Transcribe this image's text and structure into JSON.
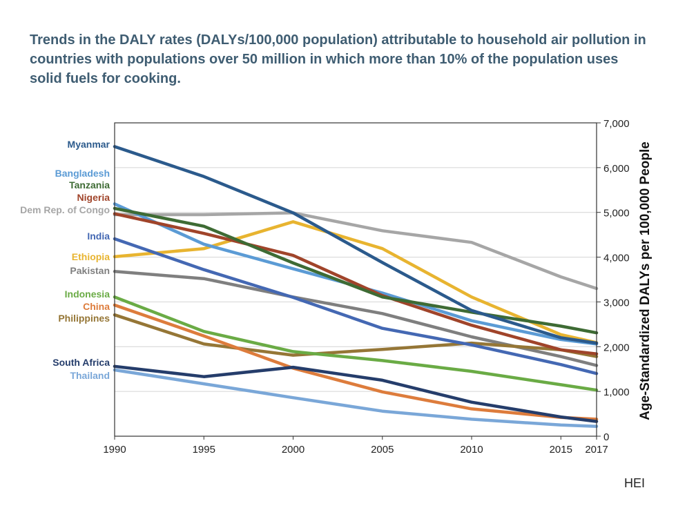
{
  "title": "Trends in the DALY rates (DALYs/100,000 population) attributable to household air pollution in countries with populations over 50 million in which more than 10% of the population uses solid fuels for cooking.",
  "credit": "HEI",
  "chart_data": {
    "type": "line",
    "title": "Trends in the DALY rates (DALYs/100,000 population) attributable to household air pollution in countries with populations over 50 million in which more than 10% of the population uses solid fuels for cooking.",
    "xlabel": "",
    "ylabel": "Age-Standardized DALYs per 100,000 People",
    "x": [
      1990,
      1995,
      2000,
      2005,
      2010,
      2015,
      2017
    ],
    "x_ticks": [
      "1990",
      "1995",
      "2000",
      "2005",
      "2010",
      "2015",
      "2017"
    ],
    "ylim": [
      0,
      7000
    ],
    "y_ticks": [
      "0",
      "1,000",
      "2,000",
      "3,000",
      "4,000",
      "5,000",
      "6,000",
      "7,000"
    ],
    "y_axis_side": "right",
    "grid": true,
    "legend": "series labels at left of plot",
    "series": [
      {
        "name": "Dem Rep. of Congo",
        "color": "#a6a6a6",
        "values": [
          4950,
          4950,
          4990,
          4590,
          4330,
          3560,
          3300
        ]
      },
      {
        "name": "Ethiopia",
        "color": "#e8b430",
        "values": [
          4010,
          4190,
          4790,
          4190,
          3110,
          2270,
          2090
        ]
      },
      {
        "name": "Pakistan",
        "color": "#7f7f7f",
        "values": [
          3680,
          3520,
          3110,
          2740,
          2220,
          1780,
          1580
        ]
      },
      {
        "name": "Philippines",
        "color": "#957636",
        "values": [
          2710,
          2060,
          1810,
          1940,
          2080,
          1930,
          1780
        ]
      },
      {
        "name": "Indonesia",
        "color": "#6aab45",
        "values": [
          3110,
          2340,
          1890,
          1690,
          1450,
          1150,
          1030
        ]
      },
      {
        "name": "China",
        "color": "#dd7c3c",
        "values": [
          2930,
          2240,
          1520,
          990,
          610,
          420,
          380
        ]
      },
      {
        "name": "Thailand",
        "color": "#7aa7d8",
        "values": [
          1480,
          1170,
          860,
          560,
          380,
          250,
          220
        ]
      },
      {
        "name": "South Africa",
        "color": "#253d6b",
        "values": [
          1560,
          1330,
          1540,
          1250,
          760,
          430,
          330
        ]
      },
      {
        "name": "India",
        "color": "#4468b3",
        "values": [
          4410,
          3720,
          3100,
          2410,
          2040,
          1600,
          1400
        ]
      },
      {
        "name": "Bangladesh",
        "color": "#5b9bd5",
        "values": [
          5190,
          4290,
          3740,
          3200,
          2580,
          2160,
          2060
        ]
      },
      {
        "name": "Nigeria",
        "color": "#a0442a",
        "values": [
          4970,
          4530,
          4040,
          3140,
          2480,
          1930,
          1840
        ]
      },
      {
        "name": "Tanzania",
        "color": "#3e6b34",
        "values": [
          5090,
          4690,
          3870,
          3110,
          2770,
          2460,
          2310
        ]
      },
      {
        "name": "Myanmar",
        "color": "#2b5a8c",
        "values": [
          6470,
          5800,
          4990,
          3880,
          2810,
          2200,
          2080
        ]
      }
    ]
  }
}
